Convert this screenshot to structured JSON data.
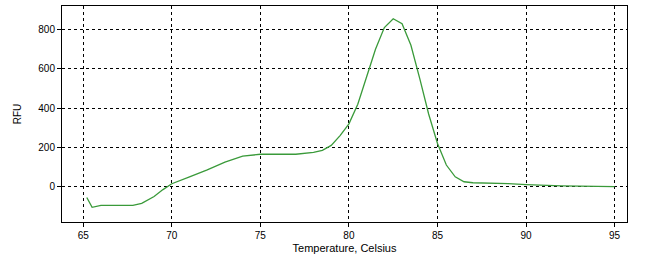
{
  "chart_data": {
    "type": "line",
    "x_label": "Temperature, Celsius",
    "y_label": "RFU",
    "x": [
      65.2,
      65.5,
      66,
      67,
      67.8,
      68.3,
      69,
      69.5,
      70,
      71,
      72,
      73,
      74,
      75,
      76,
      77,
      78,
      78.5,
      79,
      79.5,
      80,
      80.5,
      81,
      81.5,
      82,
      82.5,
      83,
      83.5,
      84,
      84.5,
      85,
      85.5,
      86,
      86.5,
      87,
      88,
      89,
      90,
      91,
      92,
      93,
      94,
      95
    ],
    "values": [
      -55,
      -105,
      -95,
      -95,
      -95,
      -85,
      -50,
      -15,
      15,
      50,
      85,
      125,
      155,
      165,
      165,
      165,
      175,
      185,
      210,
      260,
      320,
      420,
      560,
      700,
      810,
      855,
      830,
      720,
      550,
      370,
      220,
      110,
      50,
      25,
      20,
      18,
      15,
      10,
      6,
      4,
      3,
      3,
      0
    ],
    "color": "#3a9a3a",
    "xlim": [
      63.8,
      95.7
    ],
    "ylim": [
      -180,
      920
    ],
    "xticks": [
      65,
      70,
      75,
      80,
      85,
      90,
      95
    ],
    "yticks": [
      0,
      200,
      400,
      600,
      800
    ],
    "grid": true
  }
}
